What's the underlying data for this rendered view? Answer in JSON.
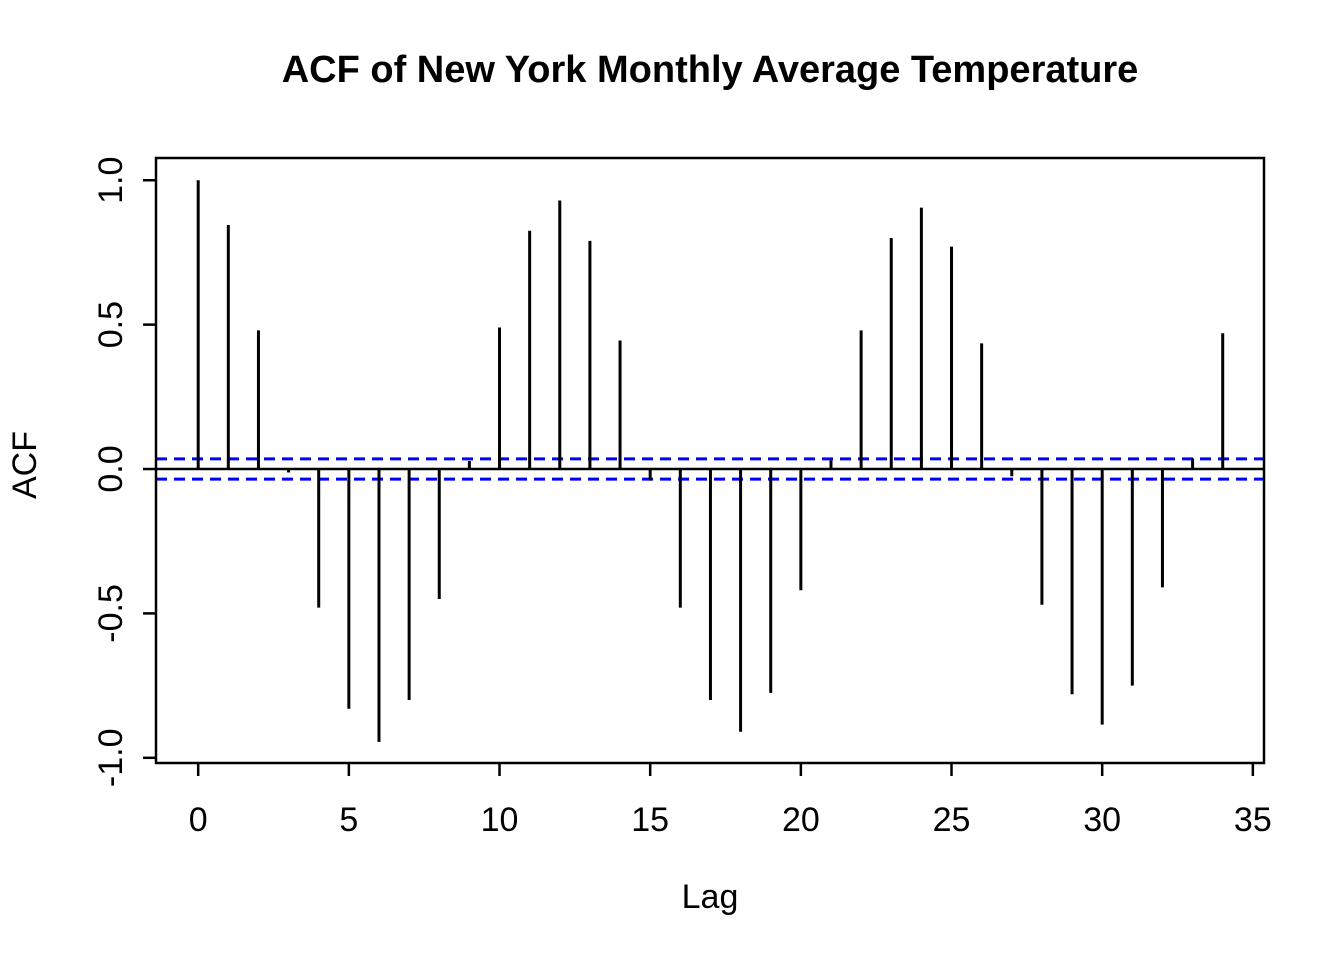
{
  "page": {
    "background": "#ffffff"
  },
  "chart_data": {
    "type": "bar",
    "variant": "acf-stem-plot",
    "title": "ACF of New York Monthly Average Temperature",
    "xlabel": "Lag",
    "ylabel": "ACF",
    "x": [
      0,
      1,
      2,
      3,
      4,
      5,
      6,
      7,
      8,
      9,
      10,
      11,
      12,
      13,
      14,
      15,
      16,
      17,
      18,
      19,
      20,
      21,
      22,
      23,
      24,
      25,
      26,
      27,
      28,
      29,
      30,
      31,
      32,
      33,
      34
    ],
    "values": [
      1.0,
      0.845,
      0.48,
      -0.012,
      -0.48,
      -0.83,
      -0.945,
      -0.8,
      -0.45,
      0.028,
      0.49,
      0.825,
      0.93,
      0.79,
      0.445,
      -0.04,
      -0.48,
      -0.8,
      -0.91,
      -0.775,
      -0.42,
      0.03,
      0.48,
      0.8,
      0.905,
      0.77,
      0.435,
      -0.025,
      -0.47,
      -0.78,
      -0.885,
      -0.75,
      -0.41,
      0.037,
      0.47
    ],
    "confidence_band": 0.035,
    "confidence_line_style": "dashed",
    "zero_line": 0,
    "xticks": {
      "values": [
        0,
        5,
        10,
        15,
        20,
        25,
        30,
        35
      ],
      "labels": [
        "0",
        "5",
        "10",
        "15",
        "20",
        "25",
        "30",
        "35"
      ]
    },
    "yticks": {
      "values": [
        1.0,
        0.5,
        0.0,
        -0.5,
        -1.0
      ],
      "labels": [
        "1.0",
        "0.5",
        "0.0",
        "-0.5",
        "-1.0"
      ]
    },
    "xlim": [
      -1.4,
      35.37
    ],
    "ylim": [
      -1.018,
      1.077
    ],
    "grid": false,
    "legend": null,
    "colors": {
      "bars": "#000000",
      "zero_line": "#000000",
      "confidence": "#0000FF",
      "box": "#000000",
      "text": "#000000",
      "background": "#FFFFFF"
    }
  }
}
